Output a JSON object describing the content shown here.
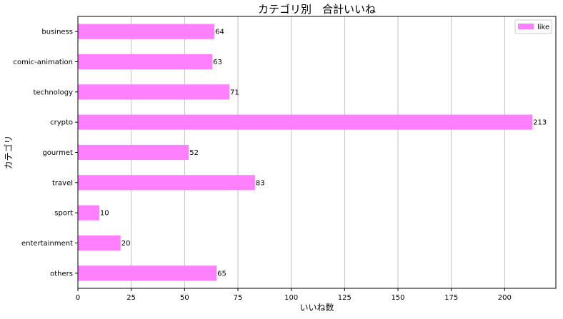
{
  "chart_data": {
    "type": "bar",
    "orientation": "horizontal",
    "title": "カテゴリ別　合計いいね",
    "xlabel": "いいね数",
    "ylabel": "カテゴリ",
    "categories": [
      "business",
      "comic-animation",
      "technology",
      "crypto",
      "gourmet",
      "travel",
      "sport",
      "entertainment",
      "others"
    ],
    "series": [
      {
        "name": "like",
        "values": [
          64,
          63,
          71,
          213,
          52,
          83,
          10,
          20,
          65
        ],
        "color": "#ff80ff"
      }
    ],
    "xlim": [
      0,
      224
    ],
    "xticks": [
      0,
      25,
      50,
      75,
      100,
      125,
      150,
      175,
      200
    ],
    "grid": "vertical",
    "legend": "top-right",
    "data_labels": true
  }
}
